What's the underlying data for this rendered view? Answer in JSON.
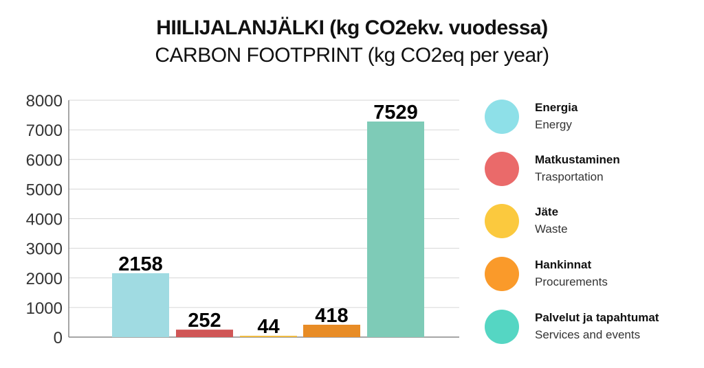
{
  "chart_data": {
    "type": "bar",
    "title": "HIILIJALANJÄLKI (kg CO2ekv. vuodessa)",
    "subtitle": "CARBON FOOTPRINT (kg CO2eq per year)",
    "categories": [
      "Energia / Energy",
      "Matkustaminen / Trasportation",
      "Jäte / Waste",
      "Hankinnat / Procurements",
      "Palvelut ja tapahtumat / Services and events"
    ],
    "values": [
      2158,
      252,
      44,
      418,
      7529
    ],
    "data_labels": [
      "2158",
      "252",
      "44",
      "418",
      "7529"
    ],
    "bar_colors": [
      "#a0dbe2",
      "#d05656",
      "#f0b93a",
      "#e88c26",
      "#7ecbb7"
    ],
    "ylim": [
      0,
      8000
    ],
    "yticks": [
      "0",
      "1000",
      "2000",
      "3000",
      "4000",
      "5000",
      "6000",
      "7000",
      "8000"
    ],
    "grid": true,
    "legend_position": "right",
    "legend": [
      {
        "fi": "Energia",
        "en": "Energy",
        "color": "#8ee0e8"
      },
      {
        "fi": "Matkustaminen",
        "en": "Trasportation",
        "color": "#ea6a6a"
      },
      {
        "fi": "Jäte",
        "en": "Waste",
        "color": "#fbc93e"
      },
      {
        "fi": "Hankinnat",
        "en": "Procurements",
        "color": "#fa9a2a"
      },
      {
        "fi": "Palvelut ja tapahtumat",
        "en": "Services and events",
        "color": "#55d6c3"
      }
    ]
  }
}
